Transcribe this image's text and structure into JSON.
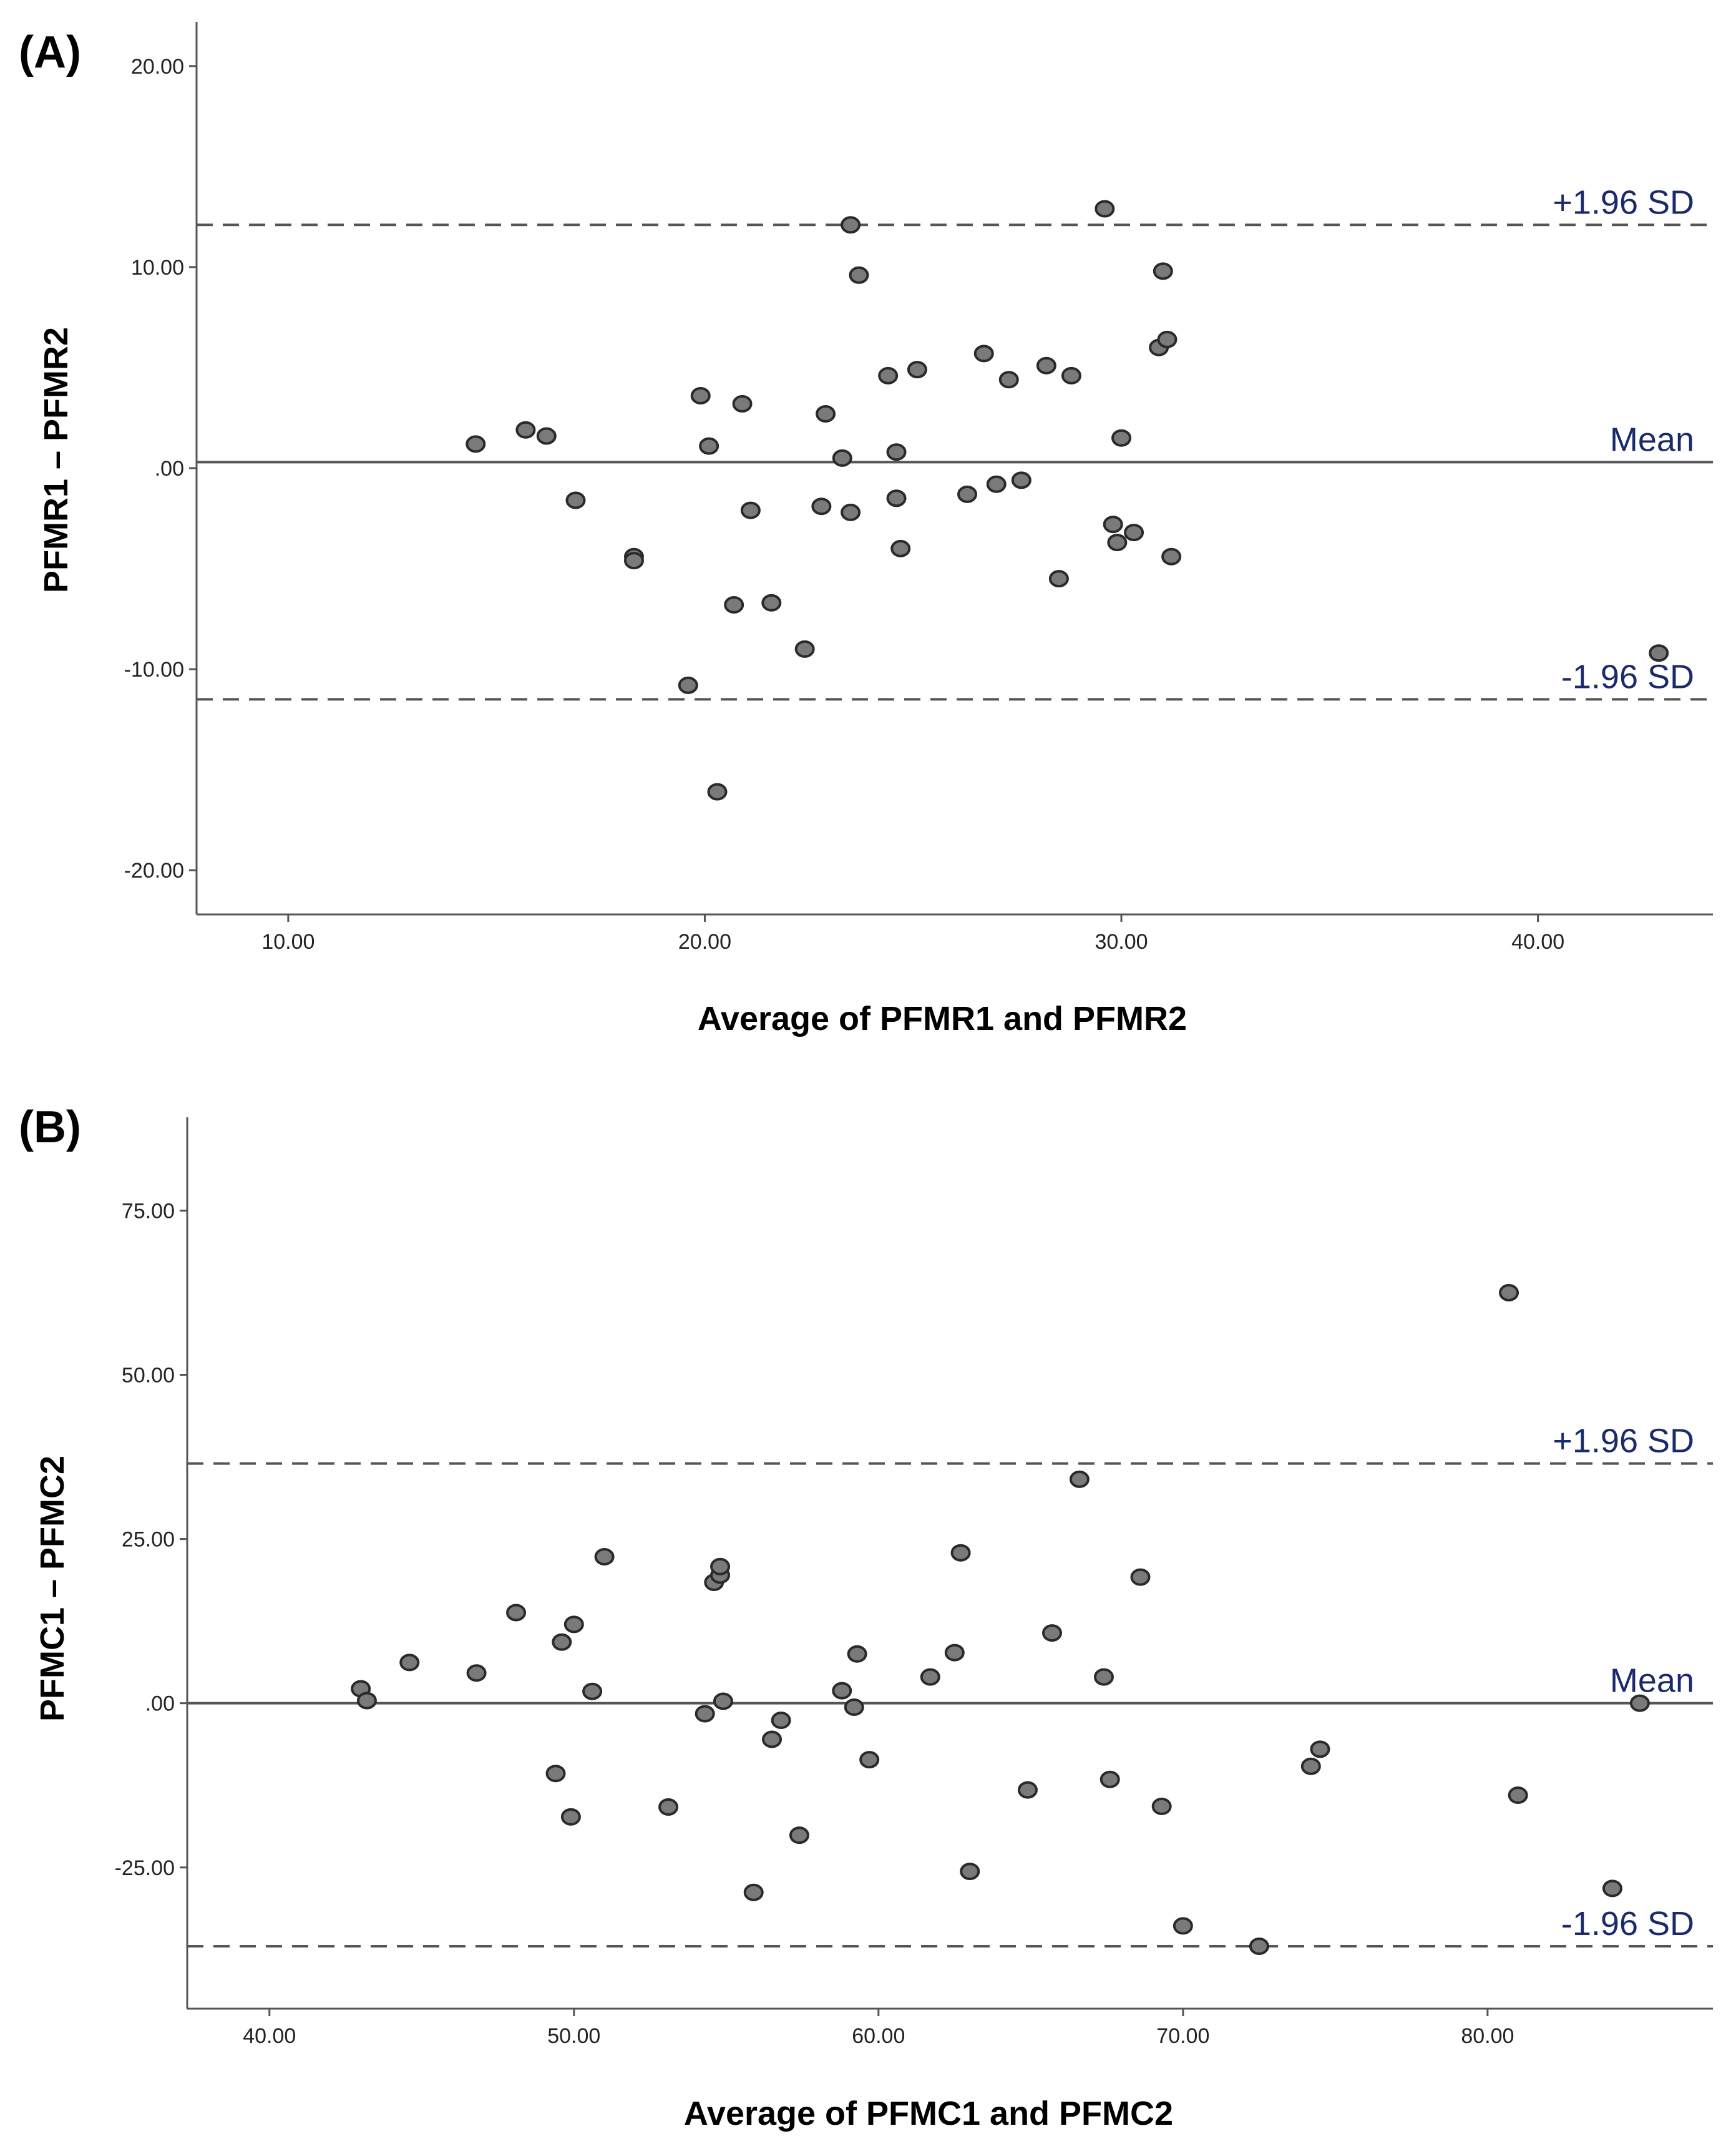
{
  "colors": {
    "label_text": "#1a2a6b",
    "point_fill": "#7a7a7a",
    "point_stroke": "#2a2a2a",
    "line": "#555555"
  },
  "chart_data": [
    {
      "type": "scatter",
      "panel_label": "(A)",
      "title": "",
      "xlabel": "Average of PFMR1 and PFMR2",
      "ylabel": "PFMR1 – PFMR2",
      "xlim": [
        7.8,
        44.2
      ],
      "ylim": [
        -22.2,
        22.2
      ],
      "xticks": [
        10,
        20,
        30,
        40
      ],
      "xtick_labels": [
        "10.00",
        "20.00",
        "30.00",
        "40.00"
      ],
      "yticks": [
        20,
        10,
        0,
        -10,
        -20
      ],
      "ytick_labels": [
        "20.00",
        "10.00",
        ".00",
        "-10.00",
        "-20.00"
      ],
      "mean": 0.3,
      "upper_loa": 12.1,
      "lower_loa": -11.5,
      "mean_label": "Mean",
      "upper_label": "+1.96 SD",
      "lower_label": "-1.96 SD",
      "points": [
        [
          14.5,
          1.2
        ],
        [
          15.7,
          1.9
        ],
        [
          16.2,
          1.6
        ],
        [
          16.9,
          -1.6
        ],
        [
          18.3,
          -4.4
        ],
        [
          18.3,
          -4.6
        ],
        [
          19.6,
          -10.8
        ],
        [
          19.9,
          3.6
        ],
        [
          20.1,
          1.1
        ],
        [
          20.3,
          -16.1
        ],
        [
          20.7,
          -6.8
        ],
        [
          20.9,
          3.2
        ],
        [
          21.1,
          -2.1
        ],
        [
          21.6,
          -6.7
        ],
        [
          22.4,
          -9.0
        ],
        [
          22.8,
          -1.9
        ],
        [
          22.9,
          2.7
        ],
        [
          23.3,
          0.5
        ],
        [
          23.5,
          -2.2
        ],
        [
          23.5,
          12.1
        ],
        [
          23.7,
          9.6
        ],
        [
          24.4,
          4.6
        ],
        [
          24.6,
          0.8
        ],
        [
          24.6,
          -1.5
        ],
        [
          24.7,
          -4.0
        ],
        [
          25.1,
          4.9
        ],
        [
          26.3,
          -1.3
        ],
        [
          26.7,
          5.7
        ],
        [
          27.0,
          -0.8
        ],
        [
          27.3,
          4.4
        ],
        [
          27.6,
          -0.6
        ],
        [
          28.2,
          5.1
        ],
        [
          28.5,
          -5.5
        ],
        [
          28.8,
          4.6
        ],
        [
          29.6,
          12.9
        ],
        [
          29.8,
          -2.8
        ],
        [
          29.9,
          -3.7
        ],
        [
          30.0,
          1.5
        ],
        [
          30.3,
          -3.2
        ],
        [
          30.9,
          6.0
        ],
        [
          31.0,
          9.8
        ],
        [
          31.1,
          6.4
        ],
        [
          31.2,
          -4.4
        ],
        [
          42.9,
          -9.2
        ]
      ]
    },
    {
      "type": "scatter",
      "panel_label": "(B)",
      "title": "",
      "xlabel": "Average of PFMC1 and PFMC2",
      "ylabel": "PFMC1 – PFMC2",
      "xlim": [
        37.3,
        87.4
      ],
      "ylim": [
        -46.5,
        89.2
      ],
      "xticks": [
        40,
        50,
        60,
        70,
        80
      ],
      "xtick_labels": [
        "40.00",
        "50.00",
        "60.00",
        "70.00",
        "80.00"
      ],
      "yticks": [
        75,
        50,
        25,
        0,
        -25
      ],
      "ytick_labels": [
        "75.00",
        "50.00",
        "25.00",
        ".00",
        "-25.00"
      ],
      "mean": 0.0,
      "upper_loa": 36.5,
      "lower_loa": -37.0,
      "mean_label": "Mean",
      "upper_label": "+1.96 SD",
      "lower_label": "-1.96 SD",
      "points": [
        [
          43.0,
          2.2
        ],
        [
          43.2,
          0.4
        ],
        [
          44.6,
          6.2
        ],
        [
          46.8,
          4.6
        ],
        [
          48.1,
          13.8
        ],
        [
          49.4,
          -10.7
        ],
        [
          49.6,
          9.3
        ],
        [
          49.9,
          -17.3
        ],
        [
          50.0,
          12.0
        ],
        [
          50.6,
          1.8
        ],
        [
          51.0,
          22.3
        ],
        [
          53.1,
          -15.8
        ],
        [
          54.3,
          -1.6
        ],
        [
          54.6,
          18.4
        ],
        [
          54.8,
          19.5
        ],
        [
          54.8,
          20.8
        ],
        [
          54.9,
          0.3
        ],
        [
          55.9,
          -28.8
        ],
        [
          56.5,
          -5.5
        ],
        [
          56.8,
          -2.6
        ],
        [
          57.4,
          -20.1
        ],
        [
          58.8,
          1.9
        ],
        [
          59.2,
          -0.6
        ],
        [
          59.3,
          7.5
        ],
        [
          59.7,
          -8.6
        ],
        [
          61.7,
          4.0
        ],
        [
          62.5,
          7.7
        ],
        [
          62.7,
          22.9
        ],
        [
          63.0,
          -25.6
        ],
        [
          64.9,
          -13.2
        ],
        [
          65.7,
          10.7
        ],
        [
          66.6,
          34.1
        ],
        [
          67.4,
          4.0
        ],
        [
          67.6,
          -11.6
        ],
        [
          68.6,
          19.2
        ],
        [
          69.3,
          -15.7
        ],
        [
          70.0,
          -33.9
        ],
        [
          72.5,
          -37.0
        ],
        [
          74.2,
          -9.6
        ],
        [
          74.5,
          -7.0
        ],
        [
          80.7,
          62.5
        ],
        [
          81.0,
          -14.0
        ],
        [
          84.1,
          -28.2
        ],
        [
          85.0,
          0.0
        ]
      ]
    }
  ]
}
